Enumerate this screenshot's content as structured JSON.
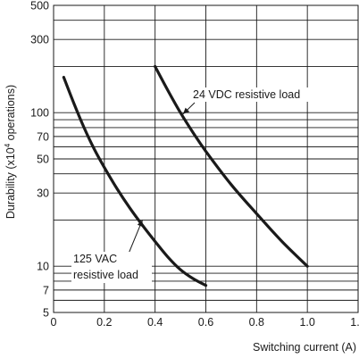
{
  "chart_data": {
    "type": "line",
    "title": "",
    "xlabel": "Switching current (A)",
    "ylabel_main": "Durability (x10",
    "ylabel_sup": "4",
    "ylabel_rest": " operations)",
    "xlim": [
      0,
      1.2
    ],
    "ylim": [
      5,
      500
    ],
    "y_scale": "log",
    "grid": true,
    "x_ticks": [
      0,
      0.2,
      0.4,
      0.6,
      0.8,
      1.0,
      1.2
    ],
    "x_tick_labels": [
      "0",
      "0.2",
      "0.4",
      "0.6",
      "0.8",
      "1.0",
      "1.2"
    ],
    "y_ticks": [
      5,
      7,
      10,
      30,
      50,
      70,
      100,
      300,
      500
    ],
    "y_tick_labels": [
      "5",
      "7",
      "10",
      "30",
      "50",
      "70",
      "100",
      "300",
      "500"
    ],
    "y_grid_lines": [
      5,
      6,
      7,
      8,
      9,
      10,
      20,
      30,
      40,
      50,
      60,
      70,
      80,
      90,
      100,
      200,
      300,
      400,
      500
    ],
    "x_grid_lines": [
      0.2,
      0.4,
      0.6,
      0.8,
      1.0,
      1.2
    ],
    "series": [
      {
        "name": "24 VDC resistive load",
        "x": [
          0.4,
          0.45,
          0.5,
          0.55,
          0.6,
          0.7,
          0.8,
          0.9,
          1.0
        ],
        "y": [
          200,
          140,
          100,
          74,
          56,
          34,
          22,
          14.5,
          10
        ]
      },
      {
        "name": "125 VAC resistive load",
        "x": [
          0.04,
          0.08,
          0.12,
          0.16,
          0.2,
          0.25,
          0.3,
          0.35,
          0.4,
          0.45,
          0.5,
          0.55,
          0.6
        ],
        "y": [
          170,
          115,
          80,
          58,
          44,
          32,
          24,
          18.5,
          14.5,
          11.5,
          9.5,
          8.3,
          7.5
        ]
      }
    ],
    "annotations": [
      {
        "text": "24 VDC resistive load",
        "arrow_to_x": 0.51,
        "arrow_to_y": 98
      },
      {
        "text_line1": "125 VAC",
        "text_line2": "resistive load",
        "arrow_to_x": 0.35,
        "arrow_to_y": 20
      }
    ]
  }
}
